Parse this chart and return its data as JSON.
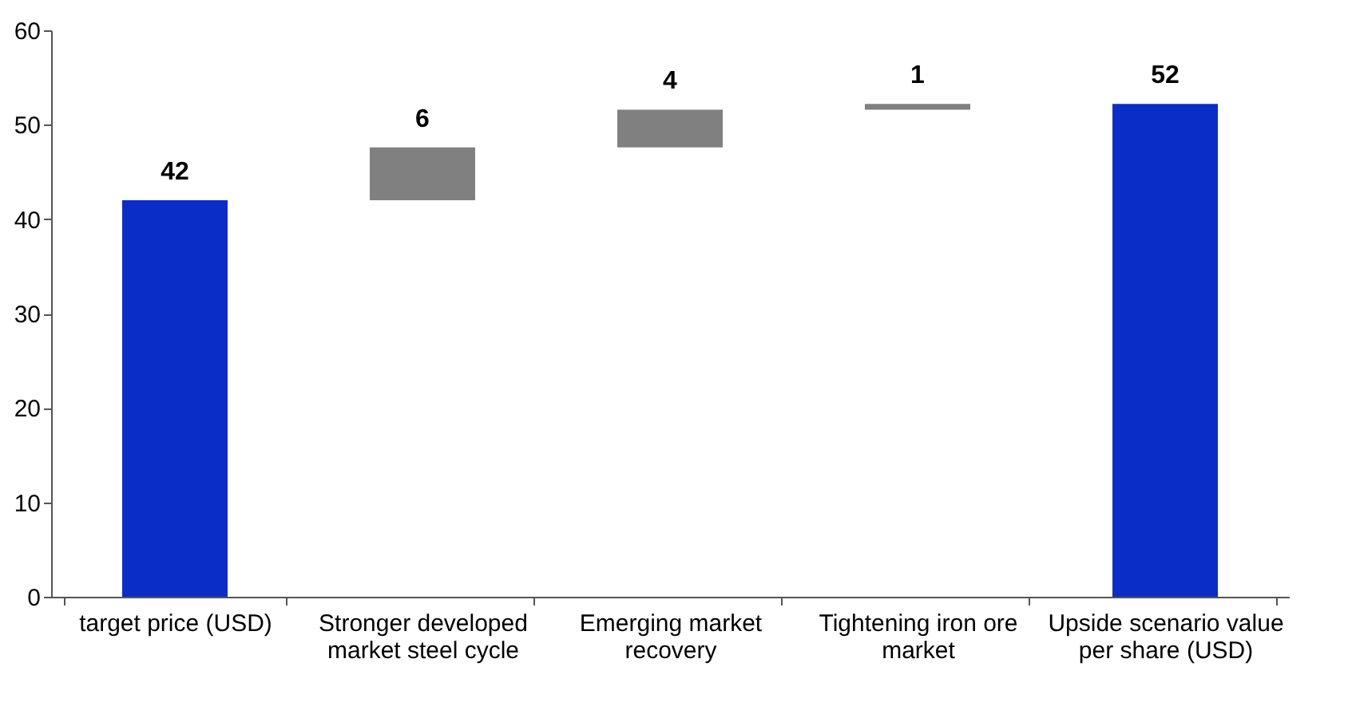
{
  "chart_data": {
    "type": "bar",
    "categories": [
      "target price (USD)",
      "Stronger developed market steel cycle",
      "Emerging market recovery",
      "Tightening iron ore market",
      "Upside scenario value per share (USD)"
    ],
    "values": [
      42,
      5.6,
      4.0,
      0.6,
      52.2
    ],
    "base": [
      0,
      42,
      47.6,
      51.6,
      0
    ],
    "colors": [
      "#0a2dc8",
      "#808080",
      "#808080",
      "#808080",
      "#0a2dc8"
    ],
    "value_labels": [
      "42",
      "6",
      "4",
      "1",
      "52"
    ],
    "ylim": [
      0,
      60
    ],
    "yticks": [
      0,
      10,
      20,
      30,
      40,
      50,
      60
    ],
    "grid": false,
    "legend": false
  }
}
